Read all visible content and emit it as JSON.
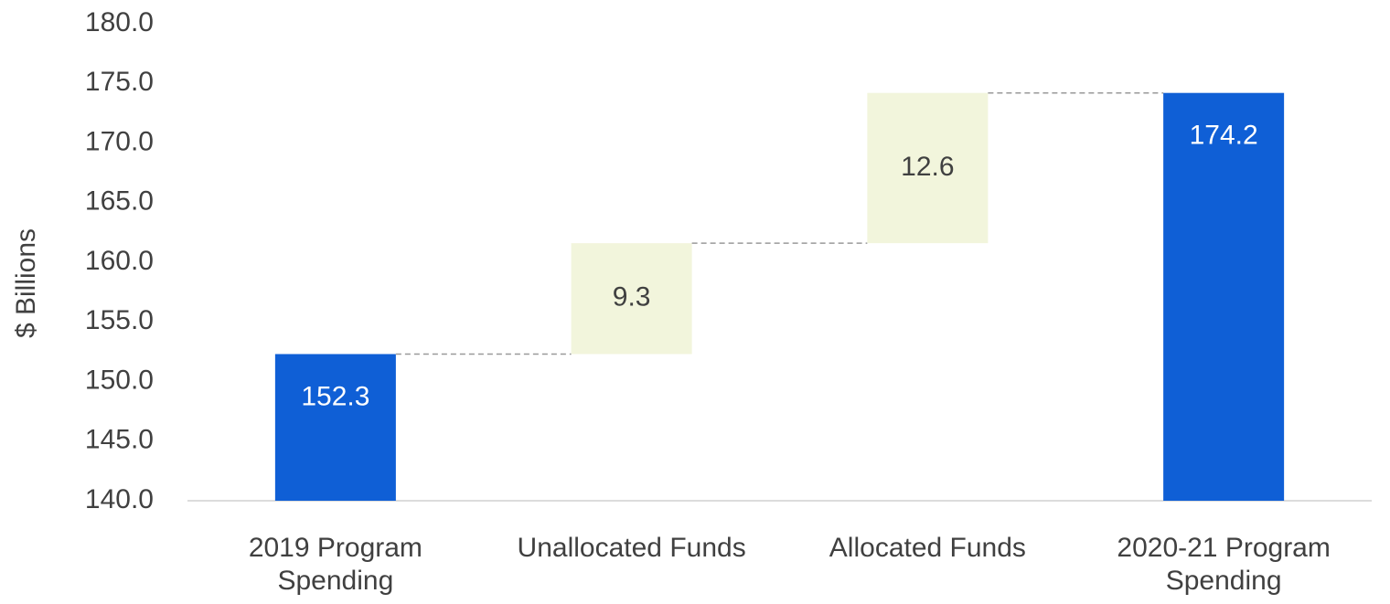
{
  "chart_data": {
    "type": "waterfall",
    "y_label": "$ Billions",
    "categories": [
      "2019 Program Spending",
      "Unallocated Funds",
      "Allocated Funds",
      "2020-21 Program Spending"
    ],
    "values": [
      152.3,
      9.3,
      12.6,
      174.2
    ],
    "measures": [
      "total",
      "relative",
      "relative",
      "total"
    ],
    "colors": [
      "#0f5fd6",
      "#f2f5dc",
      "#f2f5dc",
      "#0f5fd6"
    ],
    "label_colors": [
      "#ffffff",
      "#404040",
      "#404040",
      "#ffffff"
    ],
    "ylim": [
      140,
      180
    ],
    "yticks": [
      {
        "value": 140,
        "label": "140.0"
      },
      {
        "value": 145,
        "label": "145.0"
      },
      {
        "value": 150,
        "label": "150.0"
      },
      {
        "value": 155,
        "label": "155.0"
      },
      {
        "value": 160,
        "label": "160.0"
      },
      {
        "value": 165,
        "label": "165.0"
      },
      {
        "value": 170,
        "label": "170.0"
      },
      {
        "value": 175,
        "label": "175.0"
      },
      {
        "value": 180,
        "label": "180.0"
      }
    ],
    "grid": false
  }
}
